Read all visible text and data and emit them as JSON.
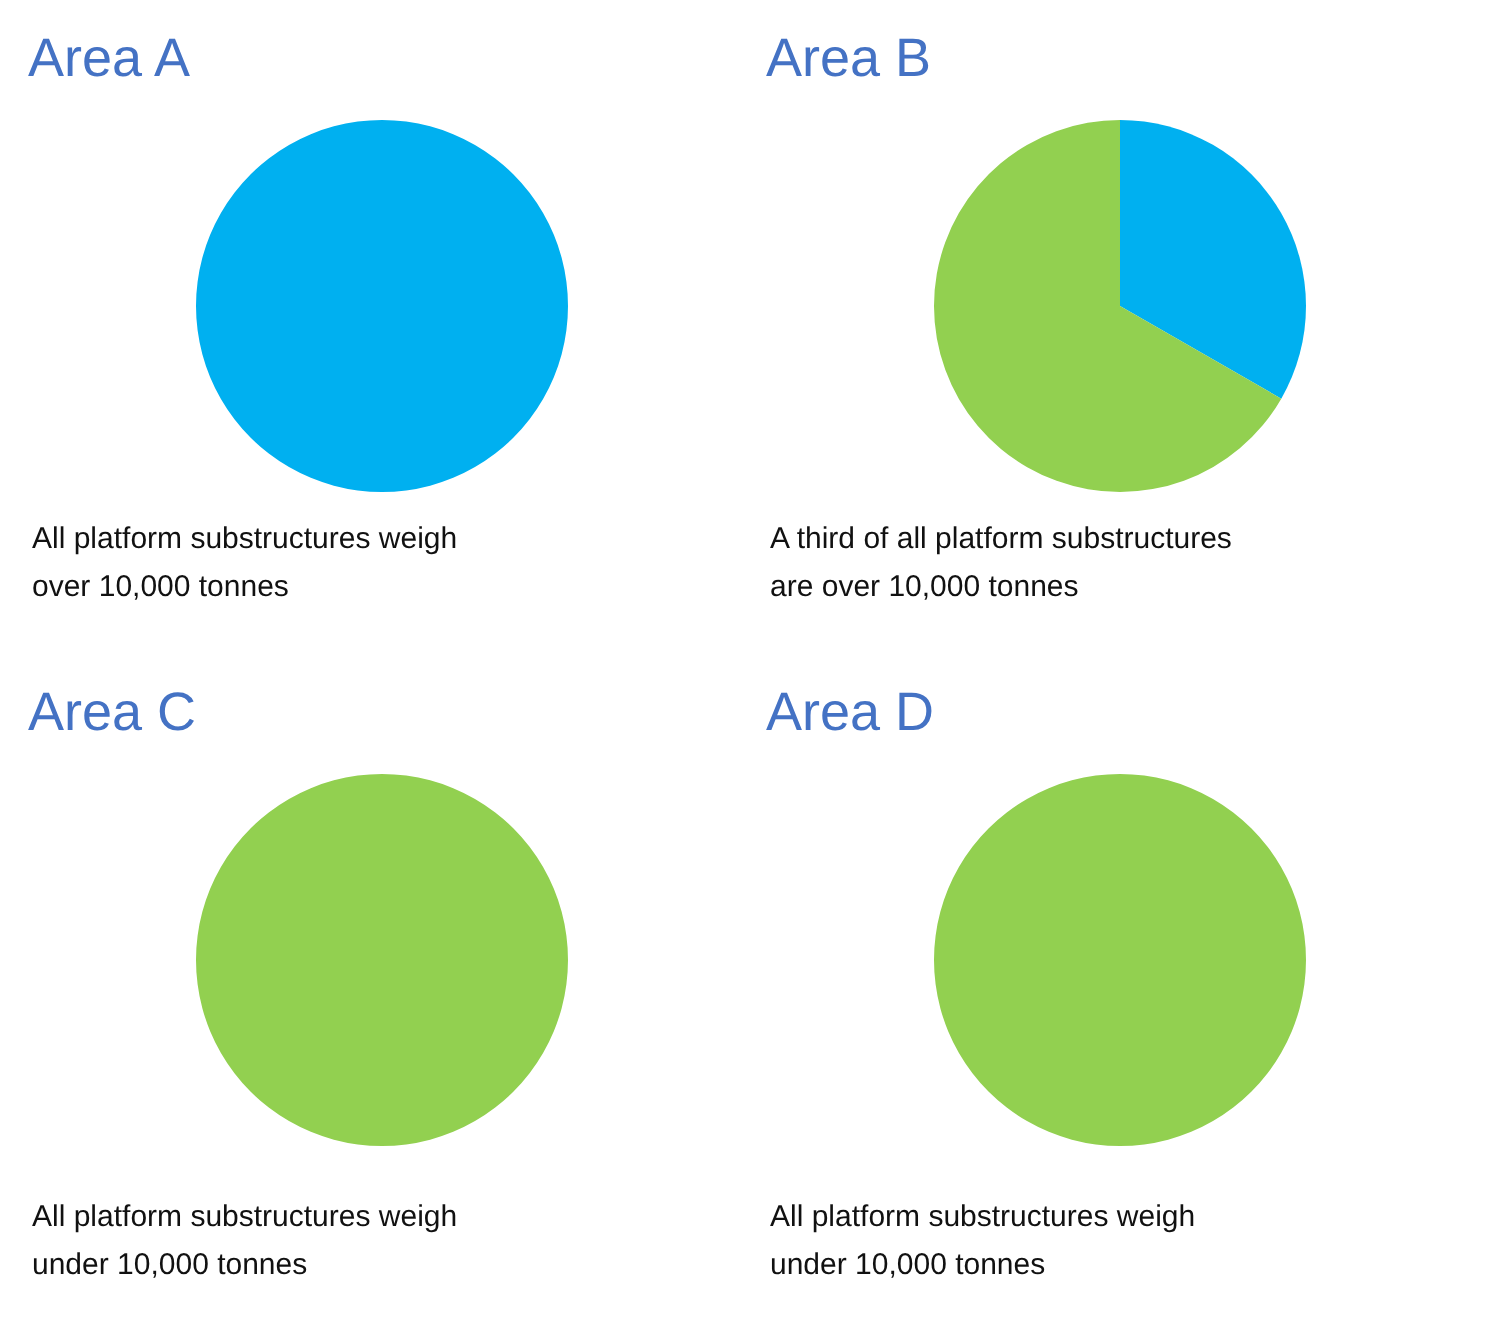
{
  "chart_data": [
    {
      "type": "pie",
      "title": "Area A",
      "categories": [
        null,
        null
      ],
      "values": [
        100,
        0
      ],
      "colors": [
        "#00b0f0",
        "#92d050"
      ],
      "legend": false,
      "annotations": [
        "All platform substructures weigh\nover 10,000 tonnes"
      ]
    },
    {
      "type": "pie",
      "title": "Area B",
      "categories": [
        null,
        null
      ],
      "values": [
        33.3,
        66.7
      ],
      "colors": [
        "#00b0f0",
        "#92d050"
      ],
      "legend": false,
      "annotations": [
        "A third of all platform substructures\nare over 10,000 tonnes"
      ]
    },
    {
      "type": "pie",
      "title": "Area C",
      "categories": [
        null,
        null
      ],
      "values": [
        0,
        100
      ],
      "colors": [
        "#00b0f0",
        "#92d050"
      ],
      "legend": false,
      "annotations": [
        "All platform substructures weigh\nunder 10,000 tonnes"
      ]
    },
    {
      "type": "pie",
      "title": "Area D",
      "categories": [
        null,
        null
      ],
      "values": [
        0,
        100
      ],
      "colors": [
        "#00b0f0",
        "#92d050"
      ],
      "legend": false,
      "annotations": [
        "All platform substructures weigh\nunder 10,000 tonnes"
      ]
    }
  ]
}
